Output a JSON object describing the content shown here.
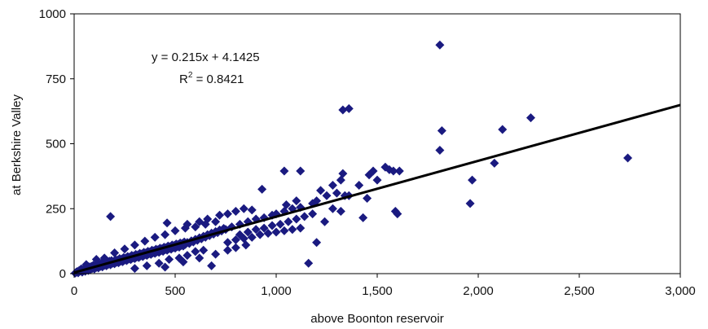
{
  "chart_data": {
    "type": "scatter",
    "title": "",
    "xlabel": "above Boonton reservoir",
    "ylabel": "at Berkshire Valley",
    "xlim": [
      0,
      3000
    ],
    "ylim": [
      0,
      1000
    ],
    "x_ticks": [
      "0",
      "500",
      "1,000",
      "1,500",
      "2,000",
      "2,500",
      "3,000"
    ],
    "x_tick_values": [
      0,
      500,
      1000,
      1500,
      2000,
      2500,
      3000
    ],
    "y_ticks": [
      "0",
      "250",
      "500",
      "750",
      "1000"
    ],
    "y_tick_values": [
      0,
      250,
      500,
      750,
      1000
    ],
    "grid": false,
    "marker": "diamond",
    "marker_color": "#1a1a80",
    "trendline": {
      "slope": 0.215,
      "intercept": 4.1425,
      "equation_label": "y = 0.215x + 4.1425",
      "r2_prefix": "R",
      "r2_sup": "2",
      "r2_value": " = 0.8421",
      "color": "#000000"
    },
    "points": [
      {
        "x": 5,
        "y": 2
      },
      {
        "x": 10,
        "y": 5
      },
      {
        "x": 15,
        "y": 8
      },
      {
        "x": 20,
        "y": 3
      },
      {
        "x": 25,
        "y": 12
      },
      {
        "x": 30,
        "y": 10
      },
      {
        "x": 35,
        "y": 18
      },
      {
        "x": 40,
        "y": 6
      },
      {
        "x": 45,
        "y": 14
      },
      {
        "x": 50,
        "y": 20
      },
      {
        "x": 55,
        "y": 9
      },
      {
        "x": 60,
        "y": 16
      },
      {
        "x": 65,
        "y": 22
      },
      {
        "x": 70,
        "y": 12
      },
      {
        "x": 75,
        "y": 26
      },
      {
        "x": 80,
        "y": 15
      },
      {
        "x": 85,
        "y": 28
      },
      {
        "x": 90,
        "y": 20
      },
      {
        "x": 95,
        "y": 32
      },
      {
        "x": 100,
        "y": 18
      },
      {
        "x": 105,
        "y": 30
      },
      {
        "x": 110,
        "y": 24
      },
      {
        "x": 115,
        "y": 36
      },
      {
        "x": 120,
        "y": 22
      },
      {
        "x": 125,
        "y": 34
      },
      {
        "x": 130,
        "y": 28
      },
      {
        "x": 135,
        "y": 40
      },
      {
        "x": 140,
        "y": 26
      },
      {
        "x": 145,
        "y": 38
      },
      {
        "x": 150,
        "y": 32
      },
      {
        "x": 155,
        "y": 44
      },
      {
        "x": 160,
        "y": 30
      },
      {
        "x": 165,
        "y": 42
      },
      {
        "x": 170,
        "y": 36
      },
      {
        "x": 175,
        "y": 48
      },
      {
        "x": 180,
        "y": 34
      },
      {
        "x": 185,
        "y": 50
      },
      {
        "x": 190,
        "y": 40
      },
      {
        "x": 195,
        "y": 46
      },
      {
        "x": 200,
        "y": 38
      },
      {
        "x": 205,
        "y": 54
      },
      {
        "x": 210,
        "y": 44
      },
      {
        "x": 215,
        "y": 52
      },
      {
        "x": 220,
        "y": 42
      },
      {
        "x": 225,
        "y": 58
      },
      {
        "x": 230,
        "y": 48
      },
      {
        "x": 235,
        "y": 56
      },
      {
        "x": 240,
        "y": 46
      },
      {
        "x": 245,
        "y": 62
      },
      {
        "x": 250,
        "y": 52
      },
      {
        "x": 255,
        "y": 60
      },
      {
        "x": 260,
        "y": 50
      },
      {
        "x": 265,
        "y": 66
      },
      {
        "x": 270,
        "y": 56
      },
      {
        "x": 275,
        "y": 64
      },
      {
        "x": 280,
        "y": 54
      },
      {
        "x": 285,
        "y": 70
      },
      {
        "x": 290,
        "y": 60
      },
      {
        "x": 295,
        "y": 68
      },
      {
        "x": 300,
        "y": 58
      },
      {
        "x": 305,
        "y": 74
      },
      {
        "x": 310,
        "y": 64
      },
      {
        "x": 315,
        "y": 72
      },
      {
        "x": 320,
        "y": 62
      },
      {
        "x": 325,
        "y": 78
      },
      {
        "x": 330,
        "y": 68
      },
      {
        "x": 335,
        "y": 76
      },
      {
        "x": 340,
        "y": 66
      },
      {
        "x": 345,
        "y": 82
      },
      {
        "x": 350,
        "y": 72
      },
      {
        "x": 355,
        "y": 80
      },
      {
        "x": 360,
        "y": 70
      },
      {
        "x": 365,
        "y": 86
      },
      {
        "x": 370,
        "y": 76
      },
      {
        "x": 375,
        "y": 84
      },
      {
        "x": 380,
        "y": 74
      },
      {
        "x": 385,
        "y": 90
      },
      {
        "x": 390,
        "y": 80
      },
      {
        "x": 395,
        "y": 88
      },
      {
        "x": 400,
        "y": 78
      },
      {
        "x": 405,
        "y": 94
      },
      {
        "x": 410,
        "y": 84
      },
      {
        "x": 415,
        "y": 92
      },
      {
        "x": 420,
        "y": 82
      },
      {
        "x": 425,
        "y": 98
      },
      {
        "x": 430,
        "y": 88
      },
      {
        "x": 435,
        "y": 96
      },
      {
        "x": 440,
        "y": 86
      },
      {
        "x": 445,
        "y": 102
      },
      {
        "x": 450,
        "y": 92
      },
      {
        "x": 455,
        "y": 100
      },
      {
        "x": 460,
        "y": 90
      },
      {
        "x": 465,
        "y": 106
      },
      {
        "x": 470,
        "y": 96
      },
      {
        "x": 475,
        "y": 104
      },
      {
        "x": 480,
        "y": 94
      },
      {
        "x": 485,
        "y": 110
      },
      {
        "x": 490,
        "y": 100
      },
      {
        "x": 495,
        "y": 108
      },
      {
        "x": 500,
        "y": 98
      },
      {
        "x": 505,
        "y": 114
      },
      {
        "x": 510,
        "y": 104
      },
      {
        "x": 515,
        "y": 112
      },
      {
        "x": 520,
        "y": 102
      },
      {
        "x": 525,
        "y": 118
      },
      {
        "x": 530,
        "y": 108
      },
      {
        "x": 535,
        "y": 116
      },
      {
        "x": 540,
        "y": 106
      },
      {
        "x": 545,
        "y": 122
      },
      {
        "x": 550,
        "y": 112
      },
      {
        "x": 560,
        "y": 120
      },
      {
        "x": 570,
        "y": 116
      },
      {
        "x": 580,
        "y": 126
      },
      {
        "x": 590,
        "y": 122
      },
      {
        "x": 600,
        "y": 132
      },
      {
        "x": 610,
        "y": 128
      },
      {
        "x": 620,
        "y": 138
      },
      {
        "x": 630,
        "y": 134
      },
      {
        "x": 640,
        "y": 144
      },
      {
        "x": 650,
        "y": 140
      },
      {
        "x": 660,
        "y": 150
      },
      {
        "x": 670,
        "y": 146
      },
      {
        "x": 680,
        "y": 156
      },
      {
        "x": 690,
        "y": 152
      },
      {
        "x": 700,
        "y": 162
      },
      {
        "x": 710,
        "y": 158
      },
      {
        "x": 720,
        "y": 168
      },
      {
        "x": 730,
        "y": 164
      },
      {
        "x": 740,
        "y": 174
      },
      {
        "x": 750,
        "y": 170
      },
      {
        "x": 60,
        "y": 35
      },
      {
        "x": 110,
        "y": 55
      },
      {
        "x": 150,
        "y": 60
      },
      {
        "x": 200,
        "y": 80
      },
      {
        "x": 250,
        "y": 95
      },
      {
        "x": 300,
        "y": 110
      },
      {
        "x": 350,
        "y": 125
      },
      {
        "x": 400,
        "y": 140
      },
      {
        "x": 450,
        "y": 150
      },
      {
        "x": 500,
        "y": 165
      },
      {
        "x": 550,
        "y": 175
      },
      {
        "x": 600,
        "y": 180
      },
      {
        "x": 650,
        "y": 190
      },
      {
        "x": 700,
        "y": 200
      },
      {
        "x": 420,
        "y": 40
      },
      {
        "x": 470,
        "y": 55
      },
      {
        "x": 520,
        "y": 60
      },
      {
        "x": 560,
        "y": 70
      },
      {
        "x": 600,
        "y": 85
      },
      {
        "x": 640,
        "y": 90
      },
      {
        "x": 680,
        "y": 30
      },
      {
        "x": 300,
        "y": 20
      },
      {
        "x": 360,
        "y": 30
      },
      {
        "x": 450,
        "y": 25
      },
      {
        "x": 540,
        "y": 45
      },
      {
        "x": 620,
        "y": 60
      },
      {
        "x": 700,
        "y": 75
      },
      {
        "x": 760,
        "y": 90
      },
      {
        "x": 800,
        "y": 100
      },
      {
        "x": 850,
        "y": 110
      },
      {
        "x": 180,
        "y": 220
      },
      {
        "x": 460,
        "y": 195
      },
      {
        "x": 560,
        "y": 190
      },
      {
        "x": 620,
        "y": 200
      },
      {
        "x": 660,
        "y": 210
      },
      {
        "x": 720,
        "y": 225
      },
      {
        "x": 760,
        "y": 230
      },
      {
        "x": 800,
        "y": 240
      },
      {
        "x": 840,
        "y": 250
      },
      {
        "x": 880,
        "y": 245
      },
      {
        "x": 780,
        "y": 180
      },
      {
        "x": 820,
        "y": 190
      },
      {
        "x": 860,
        "y": 200
      },
      {
        "x": 900,
        "y": 210
      },
      {
        "x": 940,
        "y": 215
      },
      {
        "x": 980,
        "y": 225
      },
      {
        "x": 1000,
        "y": 230
      },
      {
        "x": 1040,
        "y": 240
      },
      {
        "x": 1080,
        "y": 250
      },
      {
        "x": 1120,
        "y": 255
      },
      {
        "x": 820,
        "y": 150
      },
      {
        "x": 860,
        "y": 160
      },
      {
        "x": 900,
        "y": 170
      },
      {
        "x": 940,
        "y": 175
      },
      {
        "x": 980,
        "y": 185
      },
      {
        "x": 1020,
        "y": 190
      },
      {
        "x": 1060,
        "y": 200
      },
      {
        "x": 1100,
        "y": 210
      },
      {
        "x": 1140,
        "y": 220
      },
      {
        "x": 1180,
        "y": 230
      },
      {
        "x": 760,
        "y": 120
      },
      {
        "x": 800,
        "y": 130
      },
      {
        "x": 840,
        "y": 135
      },
      {
        "x": 880,
        "y": 140
      },
      {
        "x": 920,
        "y": 150
      },
      {
        "x": 960,
        "y": 155
      },
      {
        "x": 1000,
        "y": 160
      },
      {
        "x": 1040,
        "y": 165
      },
      {
        "x": 1080,
        "y": 170
      },
      {
        "x": 1120,
        "y": 175
      },
      {
        "x": 930,
        "y": 325
      },
      {
        "x": 1040,
        "y": 395
      },
      {
        "x": 1120,
        "y": 395
      },
      {
        "x": 1160,
        "y": 40
      },
      {
        "x": 1200,
        "y": 280
      },
      {
        "x": 1220,
        "y": 320
      },
      {
        "x": 1250,
        "y": 300
      },
      {
        "x": 1280,
        "y": 340
      },
      {
        "x": 1300,
        "y": 310
      },
      {
        "x": 1320,
        "y": 360
      },
      {
        "x": 1330,
        "y": 385
      },
      {
        "x": 1340,
        "y": 300
      },
      {
        "x": 1360,
        "y": 300
      },
      {
        "x": 1200,
        "y": 120
      },
      {
        "x": 1240,
        "y": 200
      },
      {
        "x": 1280,
        "y": 250
      },
      {
        "x": 1320,
        "y": 240
      },
      {
        "x": 1050,
        "y": 265
      },
      {
        "x": 1100,
        "y": 280
      },
      {
        "x": 1180,
        "y": 270
      },
      {
        "x": 1330,
        "y": 630
      },
      {
        "x": 1360,
        "y": 635
      },
      {
        "x": 1410,
        "y": 340
      },
      {
        "x": 1430,
        "y": 215
      },
      {
        "x": 1450,
        "y": 290
      },
      {
        "x": 1460,
        "y": 380
      },
      {
        "x": 1480,
        "y": 395
      },
      {
        "x": 1500,
        "y": 360
      },
      {
        "x": 1540,
        "y": 410
      },
      {
        "x": 1560,
        "y": 400
      },
      {
        "x": 1580,
        "y": 395
      },
      {
        "x": 1590,
        "y": 240
      },
      {
        "x": 1600,
        "y": 230
      },
      {
        "x": 1610,
        "y": 395
      },
      {
        "x": 1810,
        "y": 880
      },
      {
        "x": 1810,
        "y": 475
      },
      {
        "x": 1820,
        "y": 550
      },
      {
        "x": 1960,
        "y": 270
      },
      {
        "x": 1970,
        "y": 360
      },
      {
        "x": 2080,
        "y": 425
      },
      {
        "x": 2120,
        "y": 555
      },
      {
        "x": 2260,
        "y": 600
      },
      {
        "x": 2740,
        "y": 445
      }
    ]
  }
}
